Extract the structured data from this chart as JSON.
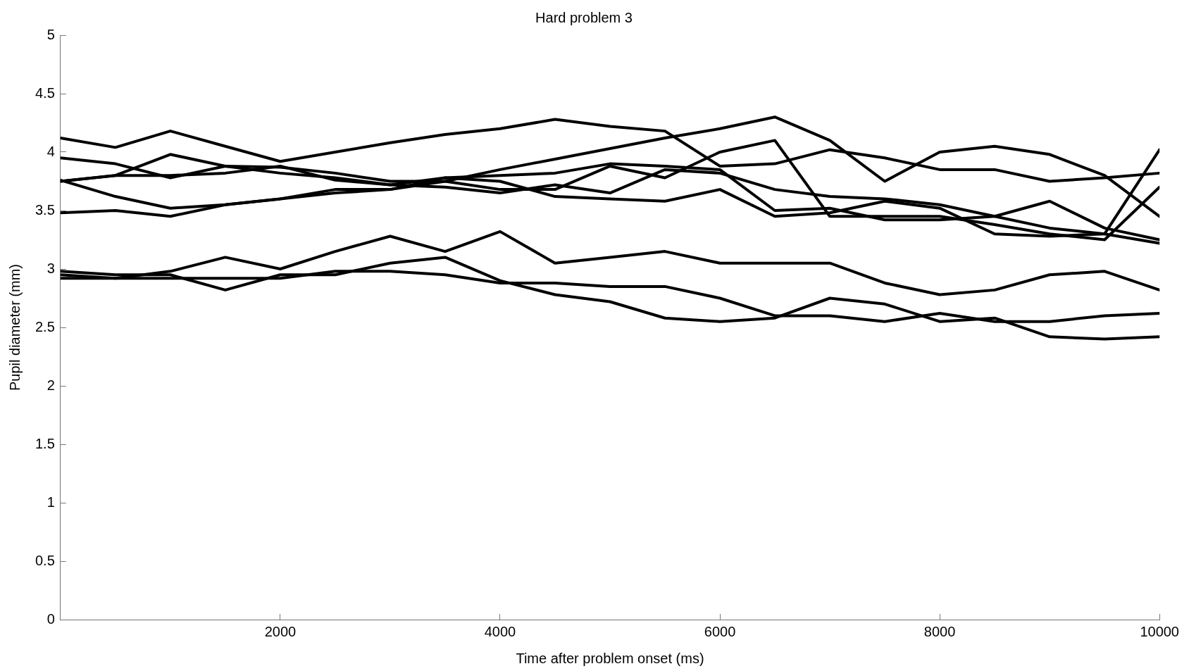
{
  "chart_data": {
    "type": "line",
    "title": "Hard problem 3",
    "xlabel": "Time after problem onset (ms)",
    "ylabel": "Pupil diameter (mm)",
    "x": [
      0,
      500,
      1000,
      1500,
      2000,
      2500,
      3000,
      3500,
      4000,
      4500,
      5000,
      5500,
      6000,
      6500,
      7000,
      7500,
      8000,
      8500,
      9000,
      9500,
      10000
    ],
    "series": [
      {
        "color": "#000000",
        "values": [
          4.12,
          4.04,
          4.18,
          4.05,
          3.92,
          4.0,
          4.08,
          4.15,
          4.2,
          4.28,
          4.22,
          4.18,
          3.88,
          3.9,
          4.02,
          3.95,
          3.85,
          3.85,
          3.75,
          3.78,
          3.82
        ]
      },
      {
        "color": "#000000",
        "values": [
          3.76,
          3.62,
          3.52,
          3.55,
          3.6,
          3.65,
          3.68,
          3.75,
          3.85,
          3.94,
          4.03,
          4.12,
          4.2,
          4.3,
          4.1,
          3.75,
          4.0,
          4.05,
          3.98,
          3.8,
          3.45
        ]
      },
      {
        "color": "#000000",
        "values": [
          3.95,
          3.9,
          3.78,
          3.88,
          3.87,
          3.82,
          3.75,
          3.75,
          3.68,
          3.68,
          3.88,
          3.78,
          4.0,
          4.1,
          3.45,
          3.45,
          3.45,
          3.38,
          3.3,
          3.25,
          3.7
        ]
      },
      {
        "color": "#000000",
        "values": [
          3.75,
          3.8,
          3.98,
          3.88,
          3.82,
          3.78,
          3.72,
          3.7,
          3.65,
          3.72,
          3.65,
          3.85,
          3.82,
          3.68,
          3.62,
          3.6,
          3.55,
          3.45,
          3.35,
          3.3,
          3.22
        ]
      },
      {
        "color": "#000000",
        "values": [
          3.75,
          3.8,
          3.8,
          3.82,
          3.88,
          3.76,
          3.72,
          3.78,
          3.8,
          3.82,
          3.9,
          3.88,
          3.85,
          3.5,
          3.52,
          3.42,
          3.42,
          3.45,
          3.58,
          3.35,
          3.25
        ]
      },
      {
        "color": "#000000",
        "values": [
          3.48,
          3.5,
          3.45,
          3.55,
          3.6,
          3.68,
          3.68,
          3.78,
          3.75,
          3.62,
          3.6,
          3.58,
          3.68,
          3.45,
          3.48,
          3.58,
          3.52,
          3.3,
          3.28,
          3.3,
          4.02
        ]
      },
      {
        "color": "#000000",
        "values": [
          2.95,
          2.92,
          2.98,
          3.1,
          3.0,
          3.15,
          3.28,
          3.15,
          3.32,
          3.05,
          3.1,
          3.15,
          3.05,
          3.05,
          3.05,
          2.88,
          2.78,
          2.82,
          2.95,
          2.98,
          2.82
        ]
      },
      {
        "color": "#000000",
        "values": [
          2.98,
          2.95,
          2.95,
          2.82,
          2.95,
          2.95,
          3.05,
          3.1,
          2.9,
          2.78,
          2.72,
          2.58,
          2.55,
          2.58,
          2.75,
          2.7,
          2.55,
          2.58,
          2.42,
          2.4,
          2.42
        ]
      },
      {
        "color": "#000000",
        "values": [
          2.92,
          2.92,
          2.92,
          2.92,
          2.92,
          2.98,
          2.98,
          2.95,
          2.88,
          2.88,
          2.85,
          2.85,
          2.75,
          2.6,
          2.6,
          2.55,
          2.62,
          2.55,
          2.55,
          2.6,
          2.62
        ]
      }
    ],
    "xlim": [
      0,
      10000
    ],
    "xticks": [
      2000,
      4000,
      6000,
      8000,
      10000
    ],
    "ylim": [
      0,
      5
    ],
    "yticks": [
      0,
      0.5,
      1,
      1.5,
      2,
      2.5,
      3,
      3.5,
      4,
      4.5,
      5
    ],
    "grid": false,
    "legend": false,
    "marker": "none",
    "line_style": "solid"
  }
}
